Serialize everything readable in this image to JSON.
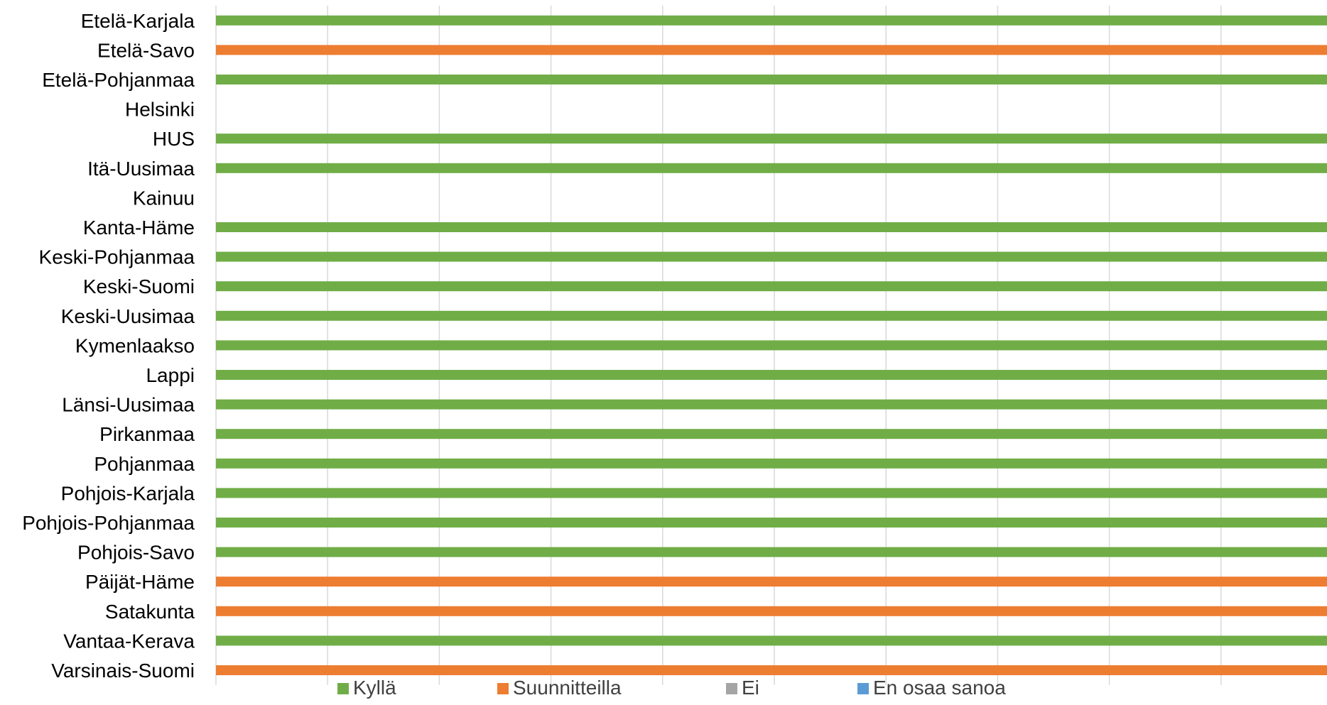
{
  "chart_data": {
    "type": "bar",
    "orientation": "horizontal",
    "stacked": true,
    "categories": [
      "Etelä-Karjala",
      "Etelä-Savo",
      "Etelä-Pohjanmaa",
      "Helsinki",
      "HUS",
      "Itä-Uusimaa",
      "Kainuu",
      "Kanta-Häme",
      "Keski-Pohjanmaa",
      "Keski-Suomi",
      "Keski-Uusimaa",
      "Kymenlaakso",
      "Lappi",
      "Länsi-Uusimaa",
      "Pirkanmaa",
      "Pohjanmaa",
      "Pohjois-Karjala",
      "Pohjois-Pohjanmaa",
      "Pohjois-Savo",
      "Päijät-Häme",
      "Satakunta",
      "Vantaa-Kerava",
      "Varsinais-Suomi"
    ],
    "series": [
      {
        "name": "Kyllä",
        "color": "#70ad47",
        "values": [
          1,
          0,
          1,
          0,
          1,
          1,
          0,
          1,
          1,
          1,
          1,
          1,
          1,
          1,
          1,
          1,
          1,
          1,
          1,
          0,
          0,
          1,
          0
        ]
      },
      {
        "name": "Suunnitteilla",
        "color": "#ed7d31",
        "values": [
          0,
          1,
          0,
          0,
          0,
          0,
          0,
          0,
          0,
          0,
          0,
          0,
          0,
          0,
          0,
          0,
          0,
          0,
          0,
          1,
          1,
          0,
          1
        ]
      },
      {
        "name": "Ei",
        "color": "#a5a5a5",
        "values": [
          0,
          0,
          0,
          0,
          0,
          0,
          0,
          0,
          0,
          0,
          0,
          0,
          0,
          0,
          0,
          0,
          0,
          0,
          0,
          0,
          0,
          0,
          0
        ]
      },
      {
        "name": "En osaa sanoa",
        "color": "#5b9bd5",
        "values": [
          0,
          0,
          0,
          0,
          0,
          0,
          0,
          0,
          0,
          0,
          0,
          0,
          0,
          0,
          0,
          0,
          0,
          0,
          0,
          0,
          0,
          0,
          0
        ]
      }
    ],
    "xlim": [
      0,
      1
    ],
    "grid": true,
    "gridline_color": "#d9d9d9",
    "legend": "bottom",
    "title": "",
    "xlabel": "",
    "ylabel": ""
  }
}
